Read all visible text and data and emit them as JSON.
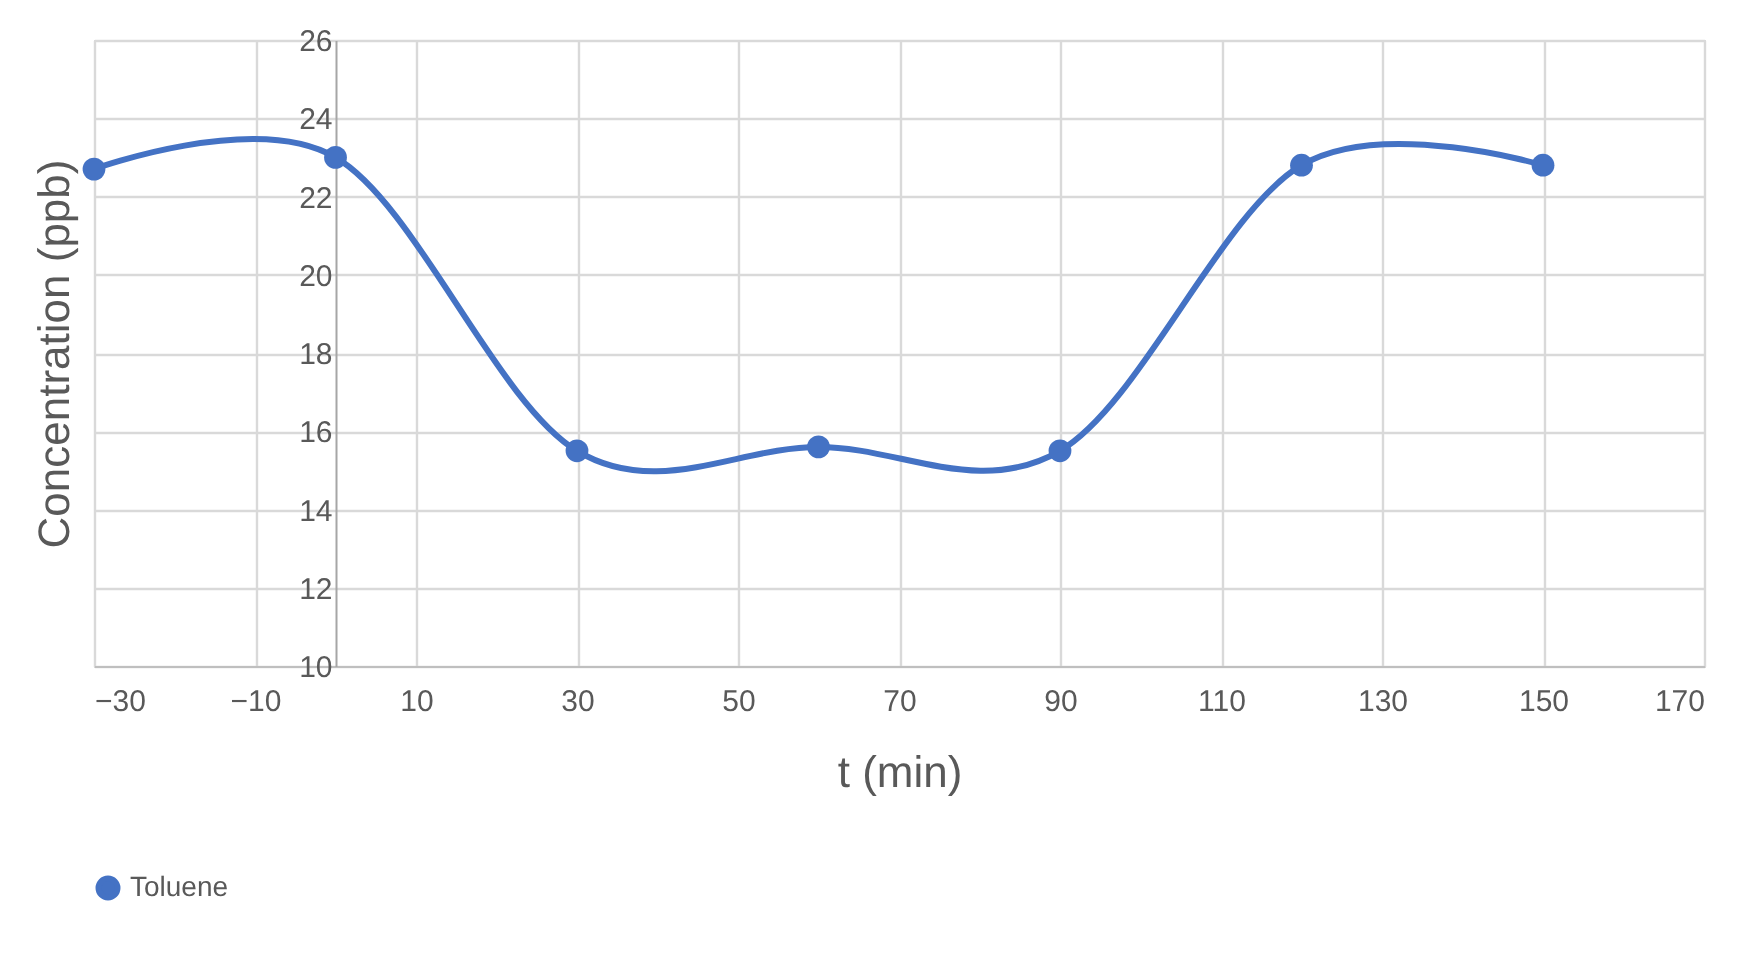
{
  "chart_data": {
    "type": "line",
    "xlabel": "t (min)",
    "ylabel": "Concentration (ppb)",
    "x": [
      -30,
      0,
      30,
      60,
      90,
      120,
      150
    ],
    "series": [
      {
        "name": "Toluene",
        "color": "#4472c4",
        "values": [
          22.7,
          23.0,
          15.5,
          15.6,
          15.5,
          22.8,
          22.8
        ]
      }
    ],
    "xlim": [
      -30,
      170
    ],
    "xticks": [
      -30,
      -10,
      10,
      30,
      50,
      70,
      90,
      110,
      130,
      150,
      170
    ],
    "ylim": [
      10,
      26
    ],
    "yticks": [
      10,
      12,
      14,
      16,
      18,
      20,
      22,
      24,
      26
    ],
    "grid": true,
    "legend": "bottom",
    "marker": "circle",
    "line_style": "solid"
  }
}
